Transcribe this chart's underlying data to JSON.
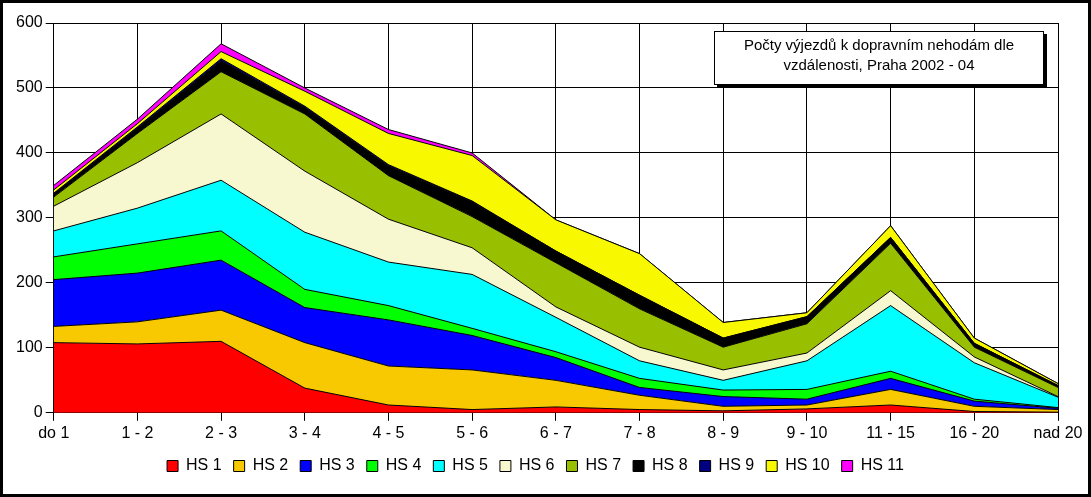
{
  "chart_data": {
    "type": "area",
    "stacked": true,
    "title": "Počty výjezdů k dopravním nehodám dle vzdálenosti, Praha 2002 - 04",
    "categories": [
      "do 1",
      "1 - 2",
      "2 - 3",
      "3 - 4",
      "4 - 5",
      "5 - 6",
      "6 - 7",
      "7 - 8",
      "8 - 9",
      "9 - 10",
      "11 - 15",
      "16 - 20",
      "nad 20"
    ],
    "ylim": [
      0,
      600
    ],
    "yticks": [
      0,
      100,
      200,
      300,
      400,
      500,
      600
    ],
    "grid": true,
    "legend": "bottom",
    "series": [
      {
        "name": "HS 1",
        "color": "#ff0000",
        "values": [
          108,
          106,
          110,
          38,
          12,
          5,
          9,
          5,
          3,
          6,
          12,
          2,
          1
        ]
      },
      {
        "name": "HS 2",
        "color": "#f8c800",
        "values": [
          25,
          34,
          48,
          70,
          60,
          61,
          41,
          22,
          7,
          6,
          24,
          8,
          4
        ]
      },
      {
        "name": "HS 3",
        "color": "#0000ff",
        "values": [
          72,
          75,
          77,
          54,
          71,
          53,
          35,
          12,
          15,
          9,
          17,
          8,
          2
        ]
      },
      {
        "name": "HS 4",
        "color": "#00ff00",
        "values": [
          35,
          45,
          45,
          28,
          22,
          11,
          9,
          14,
          10,
          15,
          11,
          3,
          1
        ]
      },
      {
        "name": "HS 5",
        "color": "#00ffff",
        "values": [
          40,
          55,
          78,
          88,
          67,
          83,
          53,
          27,
          15,
          44,
          101,
          56,
          16
        ]
      },
      {
        "name": "HS 6",
        "color": "#f8f8d0",
        "values": [
          38,
          70,
          102,
          94,
          66,
          41,
          16,
          21,
          16,
          12,
          23,
          9,
          1
        ]
      },
      {
        "name": "HS 7",
        "color": "#99c000",
        "values": [
          14,
          45,
          65,
          88,
          67,
          48,
          68,
          59,
          35,
          45,
          73,
          15,
          14
        ]
      },
      {
        "name": "HS 8",
        "color": "#000000",
        "values": [
          5,
          8,
          17,
          10,
          15,
          23,
          18,
          21,
          14,
          11,
          9,
          6,
          3
        ]
      },
      {
        "name": "HS 9",
        "color": "#000080",
        "values": [
          1,
          2,
          3,
          2,
          2,
          1,
          0,
          0,
          0,
          0,
          0,
          0,
          0
        ]
      },
      {
        "name": "HS 10",
        "color": "#f8f800",
        "values": [
          5,
          5,
          11,
          23,
          48,
          70,
          48,
          64,
          24,
          6,
          18,
          8,
          3
        ]
      },
      {
        "name": "HS 11",
        "color": "#ff00ff",
        "values": [
          7,
          7,
          12,
          5,
          6,
          4,
          0,
          0,
          0,
          0,
          0,
          0,
          0
        ]
      }
    ]
  }
}
